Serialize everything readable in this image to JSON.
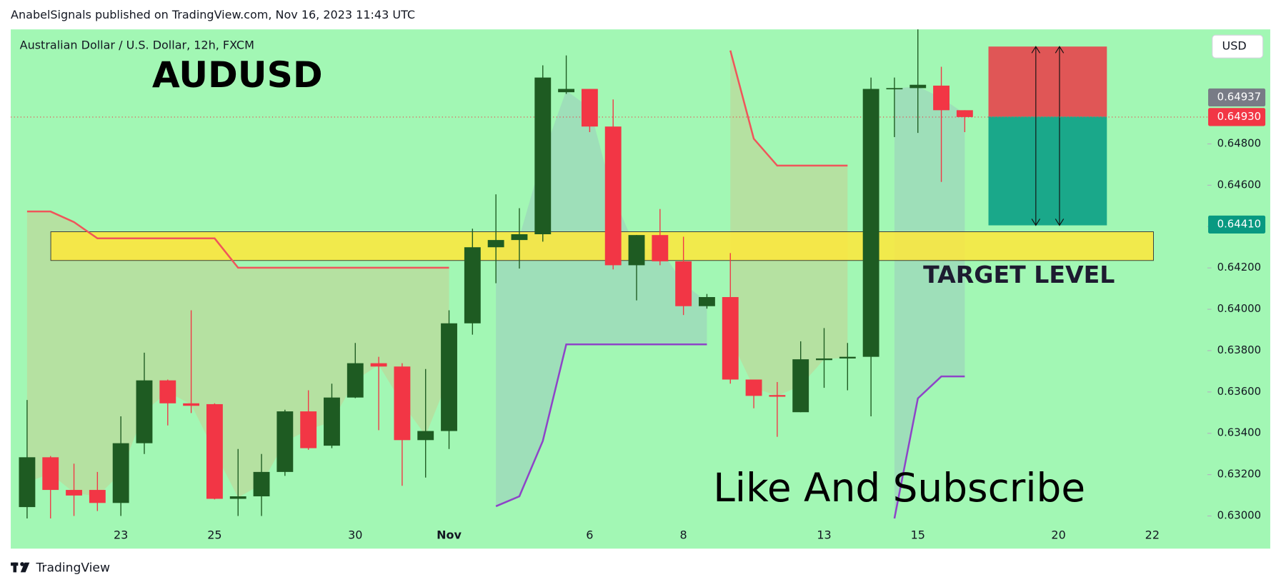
{
  "chart_data": {
    "type": "candlestick",
    "header": "AnabelSignals published on TradingView.com, Nov 16, 2023 11:43 UTC",
    "symbol_info": "Australian Dollar / U.S. Dollar, 12h, FXCM",
    "title": "AUDUSD",
    "target_label": "TARGET LEVEL",
    "cta": "Like And Subscribe",
    "currency": "USD",
    "brand": "TradingView",
    "up_color": "#1e5b22",
    "down_color": "#f23645",
    "background": "#a2f7b4",
    "categories": [
      null,
      null,
      null,
      null,
      "23",
      null,
      null,
      null,
      "25",
      null,
      null,
      null,
      null,
      null,
      "30",
      null,
      null,
      null,
      "Nov",
      null,
      null,
      null,
      null,
      null,
      "6",
      null,
      null,
      null,
      "8",
      null,
      null,
      null,
      null,
      null,
      "13",
      null,
      null,
      null,
      "15",
      null,
      null,
      null,
      null,
      null,
      "20",
      null,
      null,
      null,
      "22"
    ],
    "open": [
      0.63043,
      0.63284,
      0.63126,
      0.63126,
      0.63063,
      0.63352,
      0.63656,
      0.63545,
      0.63541,
      0.63083,
      0.63095,
      0.63213,
      0.63506,
      0.6334,
      0.63573,
      0.63739,
      0.63723,
      0.63367,
      0.63411,
      0.63932,
      0.643,
      0.64335,
      0.64363,
      0.6505,
      0.65066,
      0.64884,
      0.64213,
      0.64359,
      0.64232,
      0.64015,
      0.64059,
      0.6366,
      0.63585,
      0.63502,
      0.63754,
      0.63762,
      0.6377,
      0.65066,
      0.6507,
      0.65082,
      0.64963,
      null,
      null,
      null,
      null,
      null,
      null,
      null,
      null
    ],
    "high": [
      0.63561,
      0.6329,
      0.63253,
      0.63213,
      0.63482,
      0.6379,
      0.6366,
      0.63995,
      0.63545,
      0.63324,
      0.633,
      0.63514,
      0.63608,
      0.6364,
      0.63837,
      0.6377,
      0.63739,
      0.63711,
      0.63995,
      0.6439,
      0.64556,
      0.64489,
      0.6518,
      0.65228,
      0.65066,
      0.65015,
      0.64359,
      0.64485,
      0.64351,
      0.64074,
      0.64272,
      0.6366,
      0.63648,
      0.63845,
      0.63909,
      0.63837,
      0.65121,
      0.65121,
      0.65354,
      0.65173,
      0.64963,
      null,
      null,
      null,
      null,
      null,
      null,
      null,
      null
    ],
    "low": [
      0.62988,
      0.62988,
      0.63,
      0.63024,
      0.63,
      0.633,
      0.63438,
      0.63498,
      0.6308,
      0.63,
      0.63,
      0.63194,
      0.6332,
      0.63328,
      0.6357,
      0.63415,
      0.63146,
      0.63186,
      0.63324,
      0.63877,
      0.64126,
      0.64197,
      0.64327,
      0.65042,
      0.64857,
      0.64193,
      0.64043,
      0.64213,
      0.63972,
      0.64003,
      0.6364,
      0.63521,
      0.63383,
      0.63502,
      0.6362,
      0.63608,
      0.63482,
      0.64833,
      0.64853,
      0.64616,
      0.64857,
      null,
      null,
      null,
      null,
      null,
      null,
      null,
      null
    ],
    "close": [
      0.63284,
      0.63126,
      0.63099,
      0.63063,
      0.63352,
      0.63656,
      0.63545,
      0.63533,
      0.63083,
      0.63095,
      0.63213,
      0.63506,
      0.63328,
      0.63573,
      0.63739,
      0.63723,
      0.63367,
      0.63411,
      0.63932,
      0.643,
      0.64335,
      0.64363,
      0.65121,
      0.65066,
      0.64884,
      0.64213,
      0.64359,
      0.64232,
      0.64015,
      0.64059,
      0.6366,
      0.63581,
      0.63577,
      0.63758,
      0.63762,
      0.6377,
      0.65066,
      0.6507,
      0.65086,
      0.64963,
      0.6493,
      null,
      null,
      null,
      null,
      null,
      null,
      null,
      null
    ],
    "trend_lines": [
      {
        "color": "#f0555a",
        "fill": "rgba(230,170,110,0.28)",
        "values": [
          0.64473,
          0.64473,
          0.64422,
          0.64343,
          0.64343,
          0.64343,
          0.64343,
          0.64343,
          0.64343,
          0.64201,
          0.64201,
          0.64201,
          0.64201,
          0.64201,
          0.64201,
          0.64201,
          0.64201,
          0.64201,
          0.64201,
          null,
          null,
          null,
          null,
          null,
          null,
          null,
          null,
          null,
          null,
          null,
          0.65252,
          0.64825,
          0.64695,
          0.64695,
          0.64695,
          0.64695,
          null,
          null,
          null,
          null,
          null,
          null,
          null,
          null,
          null,
          null,
          null,
          null,
          null
        ]
      },
      {
        "color": "#8e44c8",
        "fill": "rgba(150,170,200,0.3)",
        "values": [
          null,
          null,
          null,
          null,
          null,
          null,
          null,
          null,
          null,
          null,
          null,
          null,
          null,
          null,
          null,
          null,
          null,
          null,
          null,
          null,
          0.63047,
          0.63095,
          0.63363,
          0.6383,
          0.6383,
          0.6383,
          0.6383,
          0.6383,
          0.6383,
          0.6383,
          null,
          null,
          null,
          null,
          null,
          null,
          null,
          0.62988,
          0.63569,
          0.63675,
          0.63675,
          null,
          null,
          null,
          null,
          null,
          null,
          null,
          null
        ]
      }
    ],
    "zone": [
      0.64236,
      0.64375
    ],
    "zone_color": "#ffe83a",
    "position": {
      "stop": 0.65271,
      "entry": 0.64932,
      "target": 0.64406
    },
    "price_labels": [
      {
        "value": 0.64937,
        "label": "0.64937",
        "color": "#787b86"
      },
      {
        "value": 0.6493,
        "label": "0.64930",
        "color": "#f23645"
      },
      {
        "value": 0.6441,
        "label": "0.64410",
        "color": "#089981"
      }
    ],
    "ylim": [
      0.62842,
      0.65354
    ],
    "yticks": [
      {
        "value": 0.63,
        "label": "0.63000"
      },
      {
        "value": 0.632,
        "label": "0.63200"
      },
      {
        "value": 0.634,
        "label": "0.63400"
      },
      {
        "value": 0.636,
        "label": "0.63600"
      },
      {
        "value": 0.638,
        "label": "0.63800"
      },
      {
        "value": 0.64,
        "label": "0.64000"
      },
      {
        "value": 0.642,
        "label": "0.64200"
      },
      {
        "value": 0.644,
        "label": "0.64400"
      },
      {
        "value": 0.646,
        "label": "0.64600"
      },
      {
        "value": 0.648,
        "label": "0.64800"
      }
    ]
  }
}
